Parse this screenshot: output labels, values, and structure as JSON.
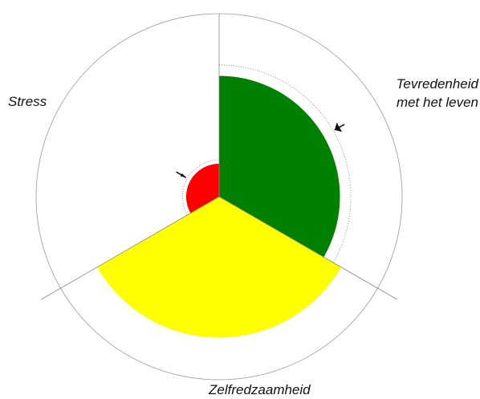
{
  "chart_data": {
    "type": "polar-area",
    "categories": [
      "Tevredenheid met het leven",
      "Zelfredzaamheid",
      "Stress"
    ],
    "series": [
      {
        "name": null,
        "colors": [
          "#008000",
          "#ffff00",
          "#ff0000"
        ],
        "values": [
          66,
          77,
          18
        ],
        "reference": [
          72,
          null,
          20
        ]
      }
    ],
    "rlim": [
      0,
      100
    ]
  }
}
